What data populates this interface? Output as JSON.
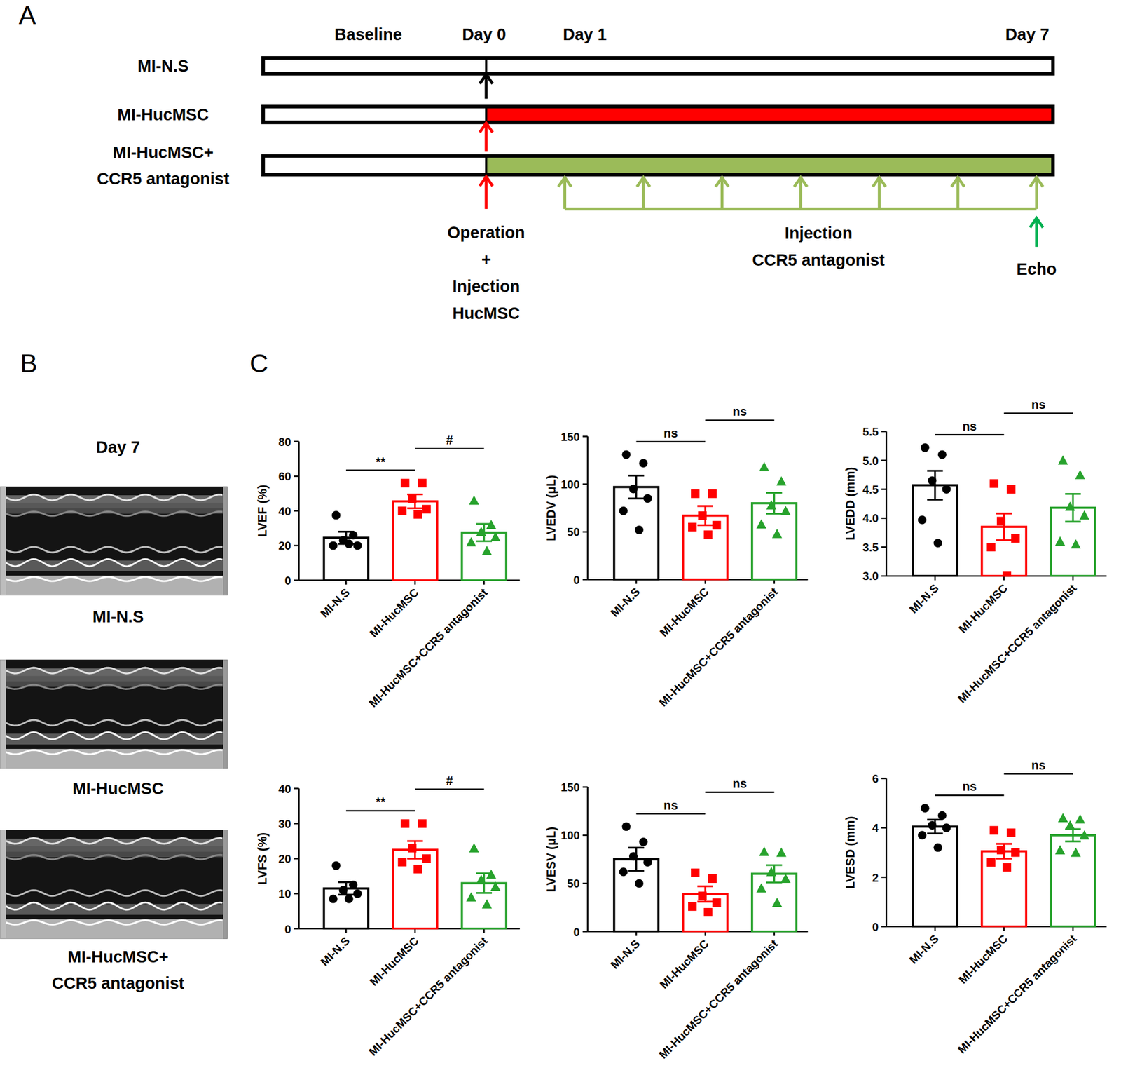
{
  "panel_a": {
    "label": "A",
    "timepoints": [
      "Baseline",
      "Day 0",
      "Day 1",
      "Day 7"
    ],
    "groups": [
      [
        "MI-N.S"
      ],
      [
        "MI-HucMSC"
      ],
      [
        "MI-HucMSC+",
        "CCR5 antagonist"
      ]
    ],
    "operation_note": [
      "Operation",
      "+",
      "Injection",
      "HucMSC"
    ],
    "antagonist_note": [
      "Injection",
      "CCR5 antagonist"
    ],
    "echo_note": "Echo"
  },
  "panel_b": {
    "label": "B",
    "title": "Day 7",
    "groups": [
      [
        "MI-N.S"
      ],
      [
        "MI-HucMSC"
      ],
      [
        "MI-HucMSC+",
        "CCR5 antagonist"
      ]
    ]
  },
  "panel_c": {
    "label": "C"
  },
  "chart_data": [
    {
      "type": "bar",
      "y_label": "LVEF (%)",
      "categories": [
        "MI-N.S",
        "MI-HucMSC",
        "MI-HucMSC+CCR5 antagonist"
      ],
      "values": [
        24.5,
        45.5,
        27.5
      ],
      "errors": [
        3.5,
        4,
        5
      ],
      "colors": [
        "#000000",
        "#ff0000",
        "#27a22c"
      ],
      "points": [
        [
          37.5,
          26,
          23,
          20,
          20,
          21
        ],
        [
          56,
          56,
          47,
          41,
          40,
          38
        ],
        [
          46,
          32,
          28,
          25,
          22,
          17
        ]
      ],
      "comparisons": [
        {
          "pair": [
            0,
            1
          ],
          "label": "**"
        },
        {
          "pair": [
            1,
            2
          ],
          "label": "#"
        }
      ],
      "ylim": [
        0,
        80
      ],
      "yticks": [
        0,
        20,
        40,
        60,
        80
      ]
    },
    {
      "type": "bar",
      "y_label": "LVEDV (μL)",
      "categories": [
        "MI-N.S",
        "MI-HucMSC",
        "MI-HucMSC+CCR5 antagonist"
      ],
      "values": [
        97,
        67,
        80
      ],
      "errors": [
        12,
        10,
        11
      ],
      "colors": [
        "#000000",
        "#ff0000",
        "#27a22c"
      ],
      "points": [
        [
          131,
          122,
          95,
          85,
          72,
          52
        ],
        [
          90,
          90,
          67,
          57,
          55,
          47
        ],
        [
          118,
          103,
          78,
          72,
          58,
          48
        ]
      ],
      "comparisons": [
        {
          "pair": [
            0,
            1
          ],
          "label": "ns"
        },
        {
          "pair": [
            1,
            2
          ],
          "label": "ns"
        }
      ],
      "ylim": [
        0,
        150
      ],
      "yticks": [
        0,
        50,
        100,
        150
      ]
    },
    {
      "type": "bar",
      "y_label": "LVEDD (mm)",
      "categories": [
        "MI-N.S",
        "MI-HucMSC",
        "MI-HucMSC+CCR5 antagonist"
      ],
      "values": [
        4.57,
        3.85,
        4.18
      ],
      "errors": [
        0.25,
        0.23,
        0.24
      ],
      "colors": [
        "#000000",
        "#ff0000",
        "#27a22c"
      ],
      "points": [
        [
          5.22,
          5.1,
          4.65,
          4.5,
          3.97,
          3.57
        ],
        [
          4.6,
          4.5,
          3.95,
          3.65,
          3.5,
          3.0
        ],
        [
          5.0,
          4.75,
          4.2,
          4.05,
          3.6,
          3.55
        ]
      ],
      "comparisons": [
        {
          "pair": [
            0,
            1
          ],
          "label": "ns"
        },
        {
          "pair": [
            1,
            2
          ],
          "label": "ns"
        }
      ],
      "ylim": [
        3,
        5.5
      ],
      "yticks": [
        {
          "value": 3,
          "label": "3.0"
        },
        3.5,
        {
          "value": 4,
          "label": "4.0"
        },
        4.5,
        {
          "value": 5,
          "label": "5.0"
        },
        5.5
      ]
    },
    {
      "type": "bar",
      "y_label": "LVFS (%)",
      "categories": [
        "MI-N.S",
        "MI-HucMSC",
        "MI-HucMSC+CCR5 antagonist"
      ],
      "values": [
        11.5,
        22.5,
        13
      ],
      "errors": [
        1.8,
        2.5,
        2.8
      ],
      "colors": [
        "#000000",
        "#ff0000",
        "#27a22c"
      ],
      "points": [
        [
          18,
          12.5,
          11,
          10,
          8.5,
          8.5
        ],
        [
          30,
          30,
          23,
          20,
          19,
          17
        ],
        [
          23,
          15.5,
          14,
          12,
          9,
          7
        ]
      ],
      "comparisons": [
        {
          "pair": [
            0,
            1
          ],
          "label": "**"
        },
        {
          "pair": [
            1,
            2
          ],
          "label": "#"
        }
      ],
      "ylim": [
        0,
        40
      ],
      "yticks": [
        0,
        10,
        20,
        30,
        40
      ]
    },
    {
      "type": "bar",
      "y_label": "LVESV (μL)",
      "categories": [
        "MI-N.S",
        "MI-HucMSC",
        "MI-HucMSC+CCR5 antagonist"
      ],
      "values": [
        75,
        39,
        60
      ],
      "errors": [
        12,
        8,
        9
      ],
      "colors": [
        "#000000",
        "#ff0000",
        "#27a22c"
      ],
      "points": [
        [
          109,
          93,
          78,
          72,
          62,
          50
        ],
        [
          61,
          55,
          37,
          30,
          26,
          20
        ],
        [
          83,
          82,
          62,
          55,
          45,
          30
        ]
      ],
      "comparisons": [
        {
          "pair": [
            0,
            1
          ],
          "label": "ns"
        },
        {
          "pair": [
            1,
            2
          ],
          "label": "ns"
        }
      ],
      "ylim": [
        0,
        150
      ],
      "yticks": [
        0,
        50,
        100,
        150
      ]
    },
    {
      "type": "bar",
      "y_label": "LVESD (mm)",
      "categories": [
        "MI-N.S",
        "MI-HucMSC",
        "MI-HucMSC+CCR5 antagonist"
      ],
      "values": [
        4.05,
        3.05,
        3.7
      ],
      "errors": [
        0.28,
        0.3,
        0.25
      ],
      "colors": [
        "#000000",
        "#ff0000",
        "#27a22c"
      ],
      "points": [
        [
          4.8,
          4.5,
          4.1,
          4.0,
          3.7,
          3.2
        ],
        [
          3.9,
          3.8,
          3.1,
          3.0,
          2.6,
          2.4
        ],
        [
          4.4,
          4.35,
          4.1,
          3.7,
          3.1,
          3.0
        ]
      ],
      "comparisons": [
        {
          "pair": [
            0,
            1
          ],
          "label": "ns"
        },
        {
          "pair": [
            1,
            2
          ],
          "label": "ns"
        }
      ],
      "ylim": [
        0,
        6
      ],
      "yticks": [
        0,
        2,
        4,
        6
      ]
    }
  ]
}
